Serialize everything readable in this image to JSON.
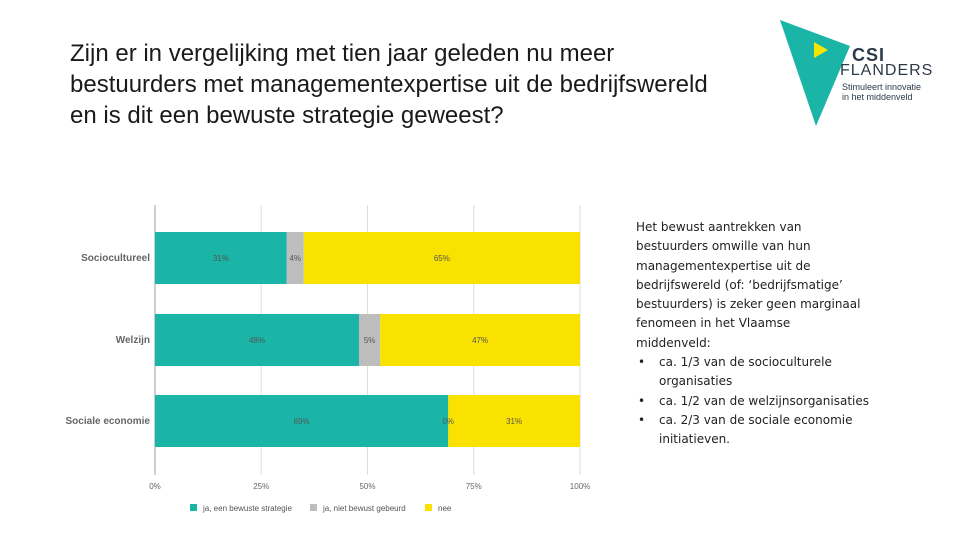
{
  "title": {
    "lines": [
      "Zijn er in vergelijking met tien jaar geleden nu meer",
      "bestuurders met managementexpertise uit de bedrijfswereld",
      "en is dit een bewuste strategie geweest?"
    ]
  },
  "logo": {
    "brand_line1": "CSI",
    "brand_line2": "FLANDERS",
    "tagline": [
      "Stimuleert innovatie",
      "in het middenveld"
    ],
    "colors": {
      "triangle": "#1ab5a6",
      "arrow": "#f5e600",
      "text": "#2d3a4a"
    }
  },
  "chart_data": {
    "type": "bar",
    "orientation": "horizontal",
    "stacked": true,
    "categories": [
      "Sociocultureel",
      "Welzijn",
      "Sociale economie"
    ],
    "series": [
      {
        "name": "ja, een bewuste strategie",
        "color": "#1ab5a6",
        "values": [
          31,
          48,
          69
        ],
        "labels": [
          "31%",
          "48%",
          "69%"
        ]
      },
      {
        "name": "ja, niet bewust gebeurd",
        "color": "#bdbdbd",
        "values": [
          4,
          5,
          0
        ],
        "labels": [
          "4%",
          "5%",
          "0%"
        ]
      },
      {
        "name": "nee",
        "color": "#f9e100",
        "values": [
          65,
          47,
          31
        ],
        "labels": [
          "65%",
          "47%",
          "31%"
        ]
      }
    ],
    "xlim": [
      0,
      100
    ],
    "x_ticks": [
      0,
      25,
      50,
      75,
      100
    ],
    "x_tick_labels": [
      "0%",
      "25%",
      "50%",
      "75%",
      "100%"
    ],
    "grid": true,
    "legend_position": "bottom"
  },
  "side_text": {
    "intro_lines": [
      "Het bewust aantrekken van",
      "bestuurders omwille van hun",
      "managementexpertise uit de",
      "bedrijfswereld (of: ‘bedrijfsmatige’",
      "bestuurders) is zeker geen marginaal",
      "fenomeen in het Vlaamse",
      "middenveld:"
    ],
    "bullets": [
      [
        "ca. 1/3 van de socioculturele",
        "organisaties"
      ],
      [
        "ca. 1/2 van de welzijnsorganisaties"
      ],
      [
        "ca. 2/3 van de sociale economie",
        "initiatieven."
      ]
    ]
  }
}
